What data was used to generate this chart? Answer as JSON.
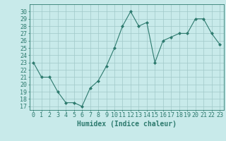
{
  "x": [
    0,
    1,
    2,
    3,
    4,
    5,
    6,
    7,
    8,
    9,
    10,
    11,
    12,
    13,
    14,
    15,
    16,
    17,
    18,
    19,
    20,
    21,
    22,
    23
  ],
  "y": [
    23,
    21,
    21,
    19,
    17.5,
    17.5,
    17,
    19.5,
    20.5,
    22.5,
    25,
    28,
    30,
    28,
    28.5,
    23,
    26,
    26.5,
    27,
    27,
    29,
    29,
    27,
    25.5
  ],
  "line_color": "#2d7a6e",
  "marker": "D",
  "marker_size": 2,
  "bg_color": "#c8eaea",
  "grid_color": "#a0c8c8",
  "xlabel": "Humidex (Indice chaleur)",
  "ylim": [
    16.5,
    31
  ],
  "xlim": [
    -0.5,
    23.5
  ],
  "yticks": [
    17,
    18,
    19,
    20,
    21,
    22,
    23,
    24,
    25,
    26,
    27,
    28,
    29,
    30
  ],
  "xticks": [
    0,
    1,
    2,
    3,
    4,
    5,
    6,
    7,
    8,
    9,
    10,
    11,
    12,
    13,
    14,
    15,
    16,
    17,
    18,
    19,
    20,
    21,
    22,
    23
  ],
  "tick_color": "#2d7a6e",
  "axis_color": "#2d7a6e",
  "xlabel_fontsize": 7,
  "tick_fontsize": 6,
  "linewidth": 0.8
}
